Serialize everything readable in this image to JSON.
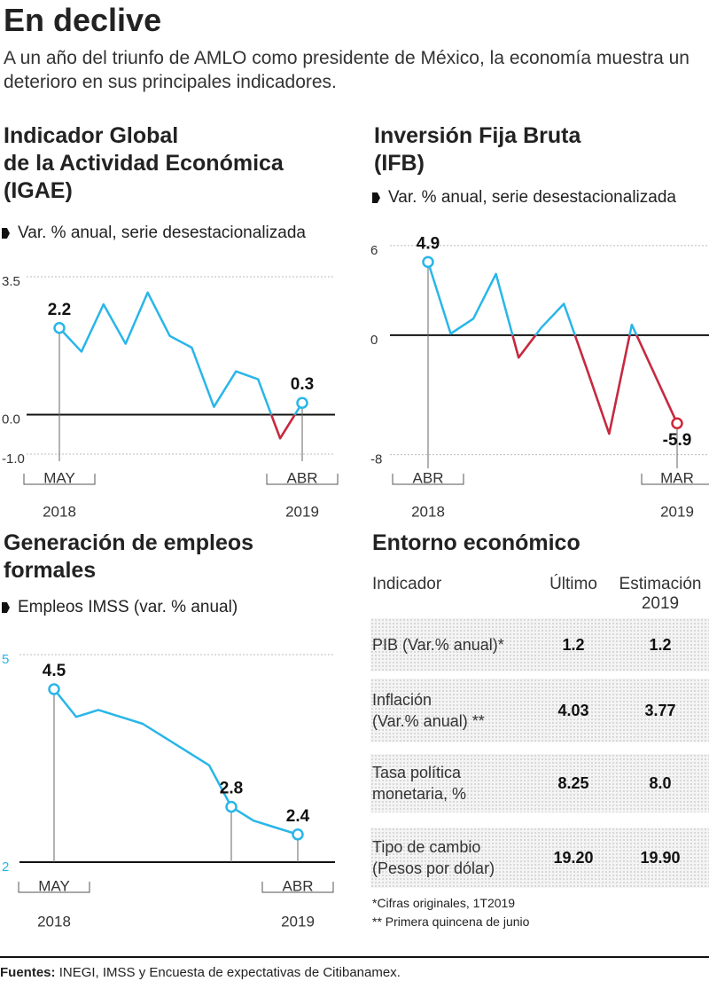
{
  "title": "En declive",
  "subtitle": "A un año del triunfo de AMLO como presidente de México, la economía muestra un deterioro en sus principales indicadores.",
  "chart_data": [
    {
      "type": "line",
      "title": [
        "Indicador Global",
        "de la Actividad Económica",
        "(IGAE)"
      ],
      "unit": "Var. % anual, serie desestacionalizada",
      "categories": [
        "MAY",
        null,
        null,
        null,
        null,
        null,
        null,
        null,
        null,
        null,
        null,
        "ABR"
      ],
      "years": [
        "2018",
        "2019"
      ],
      "series": [
        {
          "color": "#29b6e8",
          "negative_color": "#d0263a",
          "values": [
            2.2,
            1.6,
            2.8,
            1.8,
            3.1,
            2.0,
            1.7,
            0.2,
            1.1,
            0.9,
            -0.6,
            0.3
          ],
          "value_labels": [
            "2.2",
            null,
            null,
            null,
            null,
            null,
            null,
            null,
            null,
            null,
            null,
            "0.3"
          ]
        }
      ],
      "ylim": [
        -1,
        3.5
      ],
      "yticks": [
        3.5,
        {
          "value": 0,
          "label": "0.0"
        },
        {
          "value": -1,
          "label": "-1.0"
        }
      ],
      "ytick_color": "#333333",
      "grid": true
    },
    {
      "type": "line",
      "title": [
        "Inversión Fija Bruta",
        "(IFB)"
      ],
      "unit": "Var. % anual, serie desestacionalizada",
      "categories": [
        "ABR",
        null,
        null,
        null,
        null,
        null,
        null,
        null,
        null,
        null,
        null,
        "MAR"
      ],
      "years": [
        "2018",
        "2019"
      ],
      "series": [
        {
          "color": "#29b6e8",
          "negative_color": "#d0263a",
          "values": [
            4.9,
            0.1,
            1.1,
            4.1,
            -1.5,
            0.5,
            2.1,
            -2.2,
            -6.6,
            0.7,
            -2.6,
            -5.9
          ],
          "value_labels": [
            "4.9",
            null,
            null,
            null,
            null,
            null,
            null,
            null,
            null,
            null,
            null,
            "-5.9"
          ]
        }
      ],
      "ylim": [
        -8.5,
        7
      ],
      "yticks": [
        6,
        0,
        -8
      ],
      "ytick_color": "#333333",
      "grid": true
    },
    {
      "type": "line",
      "title": [
        "Generación de empleos",
        "formales"
      ],
      "unit": "Empleos IMSS (var. % anual)",
      "categories": [
        "MAY",
        null,
        null,
        null,
        null,
        null,
        null,
        null,
        null,
        null,
        null,
        "ABR"
      ],
      "years": [
        "2018",
        "2019"
      ],
      "series": [
        {
          "color": "#29b6e8",
          "values": [
            4.5,
            4.1,
            4.2,
            4.1,
            4.0,
            3.8,
            3.6,
            3.4,
            2.8,
            2.6,
            2.5,
            2.4
          ],
          "value_labels": [
            "4.5",
            null,
            null,
            null,
            null,
            null,
            null,
            null,
            "2.8",
            null,
            null,
            "2.4"
          ]
        }
      ],
      "ylim": [
        2,
        5
      ],
      "yticks": [
        5,
        2
      ],
      "ytick_color": "#29b6e8",
      "grid": true
    }
  ],
  "table": {
    "title": "Entorno económico",
    "header": [
      [
        "Indicador"
      ],
      [
        "Último"
      ],
      [
        "Estimación",
        "2019"
      ]
    ],
    "rows": [
      [
        [
          "PIB (Var.% anual)*"
        ],
        "1.2",
        "1.2"
      ],
      [
        [
          "Inflación",
          "(Var.% anual) **"
        ],
        "4.03",
        "3.77"
      ],
      [
        [
          "Tasa política",
          "monetaria, %"
        ],
        "8.25",
        "8.0"
      ],
      [
        [
          "Tipo de cambio",
          "(Pesos por dólar)"
        ],
        "19.20",
        "19.90"
      ]
    ],
    "notes": [
      "*Cifras originales, 1T2019",
      "** Primera quincena de junio"
    ]
  },
  "footer": {
    "label": "Fuentes:",
    "text": "INEGI, IMSS y Encuesta de expectativas de Citibanamex."
  }
}
